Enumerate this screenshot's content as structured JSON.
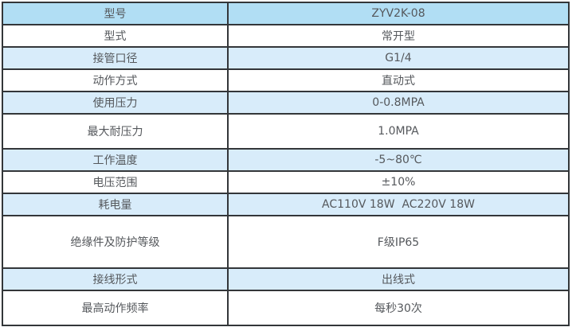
{
  "table": {
    "title": "product-specification-table",
    "columns": [
      "parameter",
      "value"
    ],
    "rows": [
      {
        "label": "型号",
        "value": "ZYV2K-08"
      },
      {
        "label": "型式",
        "value": "常开型"
      },
      {
        "label": "接管口径",
        "value": "G1/4"
      },
      {
        "label": "动作方式",
        "value": "直动式"
      },
      {
        "label": "使用压力",
        "value": "0-0.8MPA"
      },
      {
        "label": "最大耐压力",
        "value": "1.0MPA"
      },
      {
        "label": "工作温度",
        "value": "-5~80℃"
      },
      {
        "label": "电压范围",
        "value": "±10%"
      },
      {
        "label": "耗电量",
        "value": "AC110V 18W  AC220V 18W"
      },
      {
        "label": "绝缘件及防护等级",
        "value": "F级IP65"
      },
      {
        "label": "接线形式",
        "value": "出线式"
      },
      {
        "label": "最高动作频率",
        "value": "每秒30次"
      }
    ],
    "colors": {
      "first_row_bg": "#b1def4",
      "alt_row_bg": "#d8ecfa",
      "white_row_bg": "#ffffff",
      "border": "#333639",
      "text": "#55585c"
    }
  }
}
